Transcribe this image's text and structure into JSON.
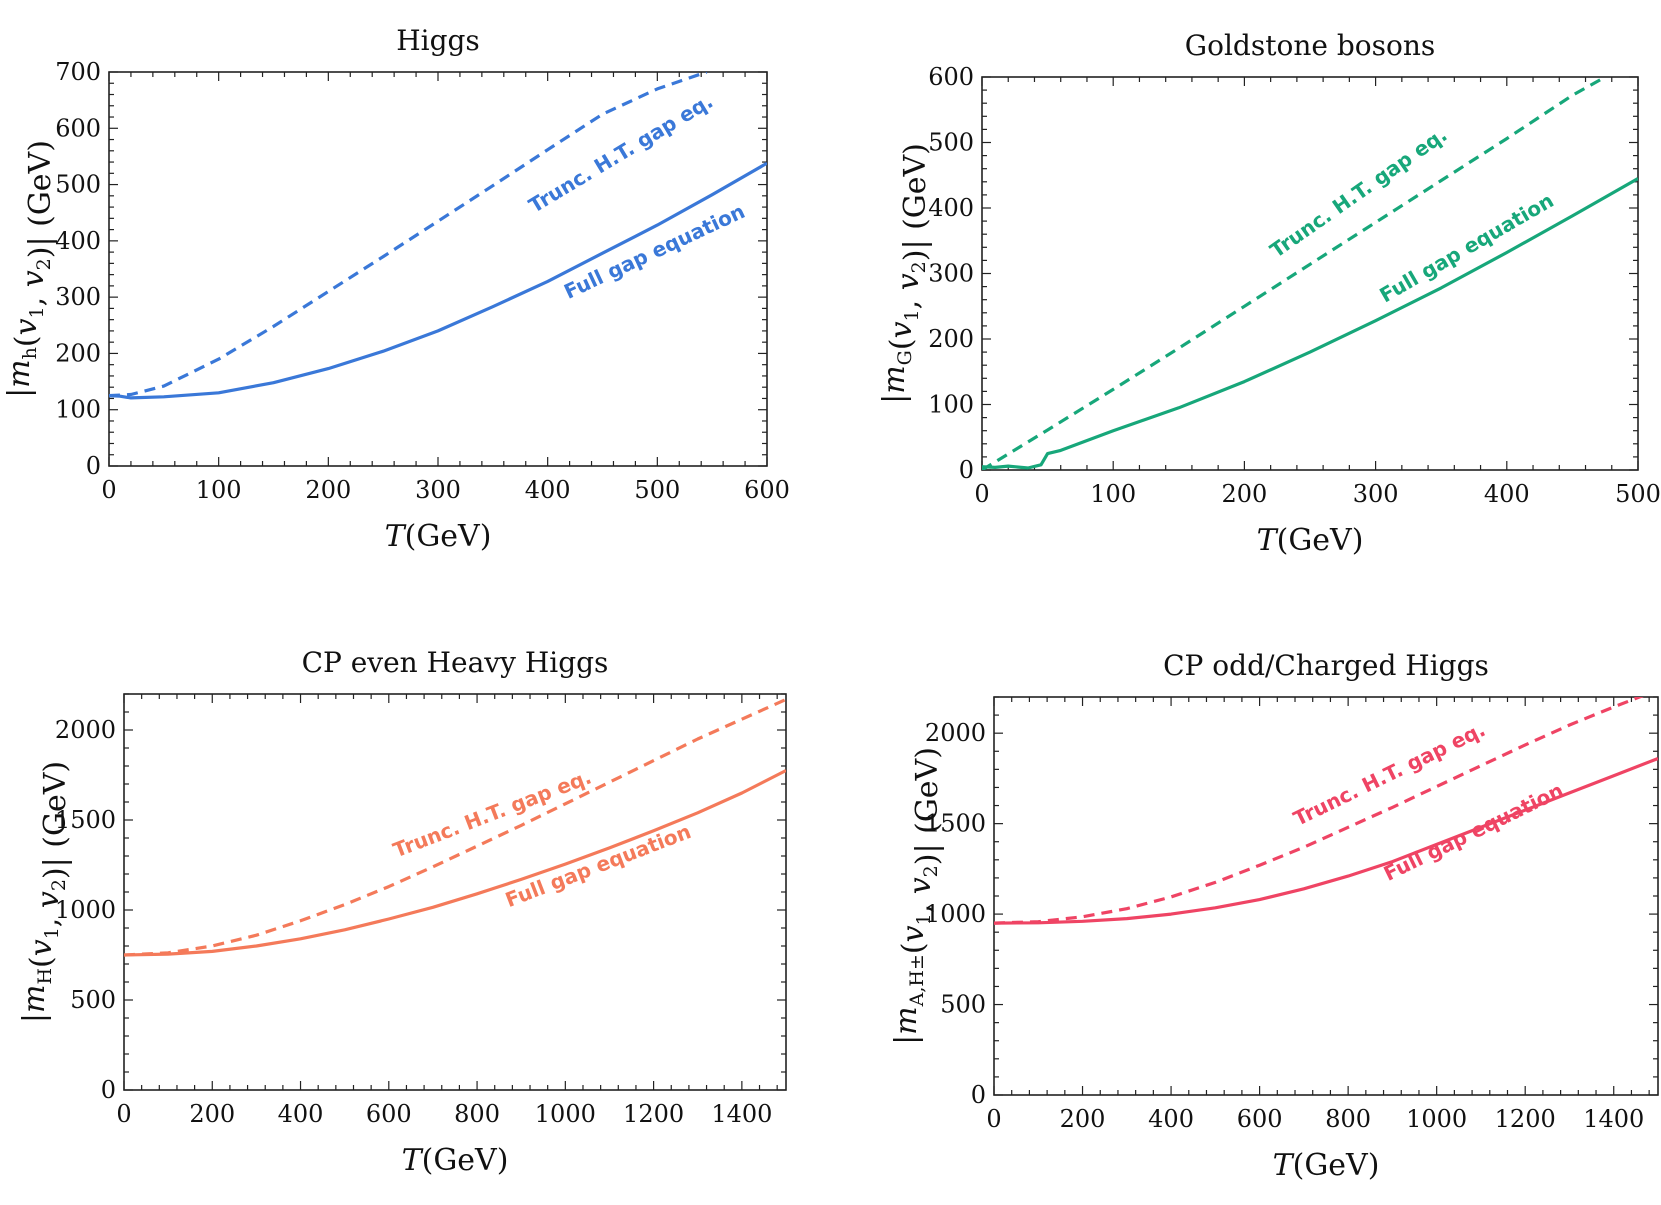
{
  "chart_data": [
    {
      "type": "line",
      "title": "Higgs",
      "xlabel": "T(GeV)",
      "ylabel": "|m_h(v_1, v_2)| (GeV)",
      "xlim": [
        0,
        600
      ],
      "ylim": [
        0,
        700
      ],
      "xticks": [
        0,
        100,
        200,
        300,
        400,
        500,
        600
      ],
      "yticks": [
        0,
        100,
        200,
        300,
        400,
        500,
        600,
        700
      ],
      "color": "#3a78d8",
      "grid": false,
      "series": [
        {
          "name": "Full gap equation",
          "style": "solid",
          "x": [
            0,
            10,
            20,
            50,
            100,
            150,
            200,
            250,
            300,
            350,
            400,
            450,
            500,
            550,
            600
          ],
          "y": [
            125,
            124,
            121,
            123,
            130,
            148,
            173,
            204,
            240,
            283,
            328,
            378,
            428,
            482,
            538
          ]
        },
        {
          "name": "Trunc. H.T. gap eq.",
          "style": "dashed",
          "x": [
            0,
            20,
            50,
            100,
            150,
            200,
            250,
            300,
            350,
            400,
            450,
            500,
            545
          ],
          "y": [
            125,
            127,
            142,
            190,
            248,
            310,
            372,
            435,
            498,
            562,
            625,
            670,
            700
          ]
        }
      ]
    },
    {
      "type": "line",
      "title": "Goldstone bosons",
      "xlabel": "T(GeV)",
      "ylabel": "|m_G(v_1, v_2)| (GeV)",
      "xlim": [
        0,
        500
      ],
      "ylim": [
        0,
        600
      ],
      "xticks": [
        0,
        100,
        200,
        300,
        400,
        500
      ],
      "yticks": [
        0,
        100,
        200,
        300,
        400,
        500,
        600
      ],
      "color": "#17a77a",
      "grid": false,
      "series": [
        {
          "name": "Full gap equation",
          "style": "solid",
          "x": [
            0,
            10,
            20,
            35,
            45,
            50,
            60,
            100,
            150,
            200,
            250,
            300,
            350,
            400,
            450,
            500
          ],
          "y": [
            5,
            4,
            6,
            3,
            8,
            25,
            30,
            60,
            95,
            135,
            180,
            228,
            278,
            332,
            388,
            445
          ]
        },
        {
          "name": "Trunc. H.T. gap eq.",
          "style": "dashed",
          "x": [
            0,
            50,
            100,
            150,
            200,
            250,
            300,
            350,
            400,
            450,
            475
          ],
          "y": [
            0,
            61,
            123,
            186,
            250,
            314,
            378,
            442,
            506,
            572,
            600
          ]
        }
      ]
    },
    {
      "type": "line",
      "title": "CP even Heavy Higgs",
      "xlabel": "T(GeV)",
      "ylabel": "|m_H(v_1, v_2)| (GeV)",
      "xlim": [
        0,
        1500
      ],
      "ylim": [
        0,
        2200
      ],
      "xticks": [
        0,
        200,
        400,
        600,
        800,
        1000,
        1200,
        1400
      ],
      "yticks": [
        0,
        500,
        1000,
        1500,
        2000
      ],
      "color": "#f47a5a",
      "grid": false,
      "series": [
        {
          "name": "Full gap equation",
          "style": "solid",
          "x": [
            0,
            100,
            200,
            300,
            400,
            500,
            600,
            700,
            800,
            900,
            1000,
            1100,
            1200,
            1300,
            1400,
            1500
          ],
          "y": [
            750,
            755,
            770,
            800,
            840,
            890,
            950,
            1015,
            1090,
            1170,
            1255,
            1345,
            1440,
            1540,
            1650,
            1775
          ]
        },
        {
          "name": "Trunc. H.T. gap eq.",
          "style": "dashed",
          "x": [
            0,
            100,
            200,
            300,
            400,
            500,
            600,
            700,
            800,
            900,
            1000,
            1100,
            1200,
            1300,
            1400,
            1500
          ],
          "y": [
            750,
            762,
            800,
            860,
            940,
            1030,
            1130,
            1240,
            1355,
            1470,
            1590,
            1710,
            1830,
            1950,
            2060,
            2170
          ]
        }
      ]
    },
    {
      "type": "line",
      "title": "CP odd/Charged Higgs",
      "xlabel": "T(GeV)",
      "ylabel": "|m_{A,H±}(v_1, v_2)| (GeV)",
      "xlim": [
        0,
        1500
      ],
      "ylim": [
        0,
        2200
      ],
      "xticks": [
        0,
        200,
        400,
        600,
        800,
        1000,
        1200,
        1400
      ],
      "yticks": [
        0,
        500,
        1000,
        1500,
        2000
      ],
      "color": "#ef4464",
      "grid": false,
      "series": [
        {
          "name": "Full gap equation",
          "style": "solid",
          "x": [
            0,
            100,
            200,
            300,
            400,
            500,
            600,
            700,
            800,
            900,
            1000,
            1100,
            1200,
            1300,
            1400,
            1500
          ],
          "y": [
            950,
            952,
            960,
            975,
            1000,
            1035,
            1080,
            1140,
            1210,
            1290,
            1385,
            1480,
            1575,
            1670,
            1765,
            1860
          ]
        },
        {
          "name": "Trunc. H.T. gap eq.",
          "style": "dashed",
          "x": [
            0,
            100,
            200,
            300,
            400,
            500,
            600,
            700,
            800,
            900,
            1000,
            1100,
            1200,
            1300,
            1400,
            1500
          ],
          "y": [
            950,
            958,
            985,
            1030,
            1095,
            1175,
            1270,
            1370,
            1480,
            1590,
            1705,
            1820,
            1935,
            2045,
            2145,
            2240
          ]
        }
      ]
    }
  ]
}
